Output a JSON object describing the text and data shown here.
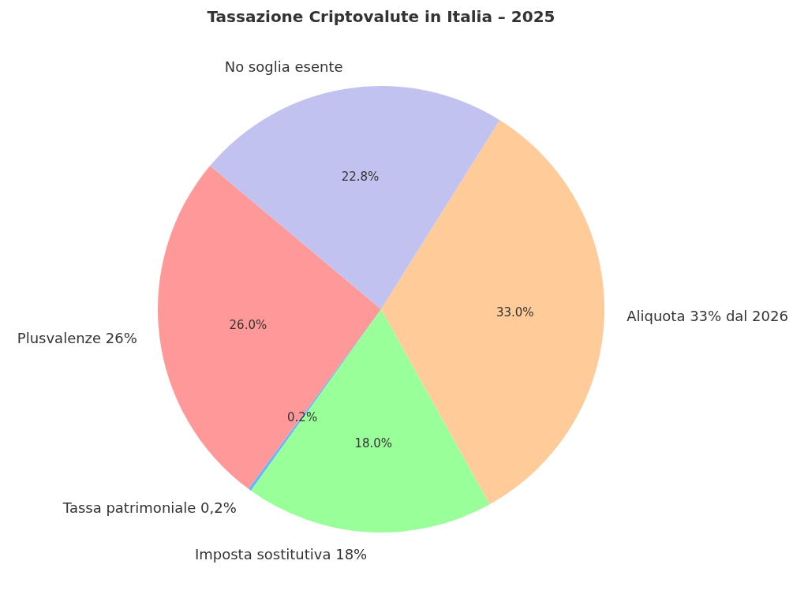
{
  "chart_data": {
    "type": "pie",
    "title": "Tassazione Criptovalute in Italia – 2025",
    "categories": [
      "Plusvalenze 26%",
      "Tassa patrimoniale 0,2%",
      "Imposta sostitutiva 18%",
      "Aliquota 33% dal 2026",
      "No soglia esente"
    ],
    "values": [
      26,
      0.2,
      18,
      33,
      22.8
    ],
    "colors": [
      "#ff9999",
      "#66b3ff",
      "#99ff99",
      "#ffcc99",
      "#c2c2f0"
    ],
    "value_labels": [
      "26.0%",
      "0.2%",
      "18.0%",
      "33.0%",
      "22.8%"
    ]
  }
}
